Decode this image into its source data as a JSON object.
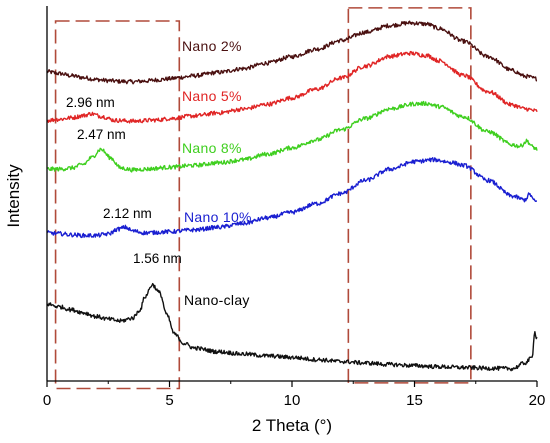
{
  "chart_data": {
    "type": "line",
    "title": "",
    "xlabel": "2 Theta (°)",
    "ylabel": "Intensity",
    "xlim": [
      0,
      20
    ],
    "ylim": [
      0,
      100
    ],
    "xticks": [
      0,
      5,
      10,
      15,
      20
    ],
    "y_tick_labels": false,
    "grid": false,
    "series": [
      {
        "name": "Nano 2%",
        "color": "#4a1010",
        "values": [
          [
            0,
            82.5
          ],
          [
            0.5,
            82.0
          ],
          [
            1,
            81.4
          ],
          [
            1.5,
            80.9
          ],
          [
            2,
            80.4
          ],
          [
            2.5,
            80.1
          ],
          [
            3,
            79.9
          ],
          [
            3.5,
            79.8
          ],
          [
            4,
            80.0
          ],
          [
            4.5,
            80.3
          ],
          [
            5,
            80.6
          ],
          [
            5.5,
            81.0
          ],
          [
            6,
            81.4
          ],
          [
            7,
            82.3
          ],
          [
            8,
            83.3
          ],
          [
            9,
            84.8
          ],
          [
            10,
            86.5
          ],
          [
            11,
            88.5
          ],
          [
            12,
            90.8
          ],
          [
            13,
            93.0
          ],
          [
            14,
            94.8
          ],
          [
            14.8,
            95.5
          ],
          [
            15.5,
            95.2
          ],
          [
            16,
            94.0
          ],
          [
            17,
            90.6
          ],
          [
            18,
            86.5
          ],
          [
            19,
            82.8
          ],
          [
            19.5,
            81.3
          ],
          [
            20,
            80.6
          ]
        ]
      },
      {
        "name": "Nano 5%",
        "color": "#e02525",
        "values": [
          [
            0,
            69.5
          ],
          [
            0.5,
            69.8
          ],
          [
            1,
            70.2
          ],
          [
            1.5,
            70.8
          ],
          [
            1.8,
            71.3
          ],
          [
            2.2,
            70.6
          ],
          [
            2.8,
            69.5
          ],
          [
            3.5,
            69.3
          ],
          [
            4.5,
            69.6
          ],
          [
            5,
            70.0
          ],
          [
            6,
            70.7
          ],
          [
            7,
            71.5
          ],
          [
            8,
            72.5
          ],
          [
            9,
            73.8
          ],
          [
            10,
            75.5
          ],
          [
            11,
            77.8
          ],
          [
            12,
            80.8
          ],
          [
            13,
            84.0
          ],
          [
            14,
            86.6
          ],
          [
            14.8,
            87.4
          ],
          [
            15.5,
            86.8
          ],
          [
            16,
            85.4
          ],
          [
            17,
            81.5
          ],
          [
            18,
            77.2
          ],
          [
            19,
            73.6
          ],
          [
            19.5,
            72.6
          ],
          [
            20,
            72.0
          ]
        ]
      },
      {
        "name": "Nano 8%",
        "color": "#3fcf1f",
        "values": [
          [
            0,
            56.5
          ],
          [
            0.5,
            56.5
          ],
          [
            1,
            56.8
          ],
          [
            1.5,
            57.8
          ],
          [
            1.8,
            59.5
          ],
          [
            2.2,
            61.8
          ],
          [
            2.6,
            59.5
          ],
          [
            3,
            56.8
          ],
          [
            3.5,
            56.3
          ],
          [
            4,
            56.5
          ],
          [
            5,
            57.0
          ],
          [
            6,
            57.5
          ],
          [
            7,
            58.2
          ],
          [
            8,
            59.0
          ],
          [
            9,
            60.5
          ],
          [
            10,
            62.2
          ],
          [
            11,
            64.3
          ],
          [
            12,
            67.0
          ],
          [
            13,
            70.0
          ],
          [
            14,
            72.6
          ],
          [
            15,
            73.9
          ],
          [
            15.5,
            74.0
          ],
          [
            16,
            73.2
          ],
          [
            17,
            70.5
          ],
          [
            18,
            66.5
          ],
          [
            19,
            63.0
          ],
          [
            19.3,
            62.6
          ],
          [
            19.6,
            64.0
          ],
          [
            19.8,
            62.5
          ],
          [
            20,
            61.8
          ]
        ]
      },
      {
        "name": "Nano 10%",
        "color": "#1a1fd1",
        "values": [
          [
            0,
            39.5
          ],
          [
            0.5,
            39.3
          ],
          [
            1,
            39.0
          ],
          [
            1.5,
            38.8
          ],
          [
            2,
            38.8
          ],
          [
            2.5,
            39.2
          ],
          [
            2.9,
            40.5
          ],
          [
            3.2,
            41.0
          ],
          [
            3.5,
            40.0
          ],
          [
            4,
            39.5
          ],
          [
            5,
            39.8
          ],
          [
            6,
            40.3
          ],
          [
            7,
            41.0
          ],
          [
            8,
            42.0
          ],
          [
            9,
            43.5
          ],
          [
            10,
            45.0
          ],
          [
            11,
            47.3
          ],
          [
            12,
            50.0
          ],
          [
            13,
            53.5
          ],
          [
            14,
            56.5
          ],
          [
            15,
            58.5
          ],
          [
            15.8,
            59.0
          ],
          [
            16.5,
            58.3
          ],
          [
            17,
            57.5
          ],
          [
            18,
            53.5
          ],
          [
            19,
            49.3
          ],
          [
            19.5,
            48.3
          ],
          [
            19.7,
            49.8
          ],
          [
            19.9,
            48.0
          ],
          [
            20,
            47.8
          ]
        ]
      },
      {
        "name": "Nano-clay",
        "color": "#111111",
        "values": [
          [
            0,
            20.5
          ],
          [
            0.5,
            19.8
          ],
          [
            1,
            19.0
          ],
          [
            1.5,
            18.2
          ],
          [
            2,
            17.2
          ],
          [
            2.5,
            16.5
          ],
          [
            3,
            16.0
          ],
          [
            3.5,
            16.8
          ],
          [
            3.8,
            19.0
          ],
          [
            4.0,
            22.5
          ],
          [
            4.3,
            25.7
          ],
          [
            4.6,
            23.5
          ],
          [
            4.9,
            17.5
          ],
          [
            5.2,
            12.5
          ],
          [
            5.6,
            10.0
          ],
          [
            6,
            8.8
          ],
          [
            7,
            7.8
          ],
          [
            8,
            7.2
          ],
          [
            9,
            6.7
          ],
          [
            10,
            6.3
          ],
          [
            11,
            5.7
          ],
          [
            12,
            5.2
          ],
          [
            13,
            4.8
          ],
          [
            14,
            4.4
          ],
          [
            15,
            4.1
          ],
          [
            16,
            3.8
          ],
          [
            17,
            3.6
          ],
          [
            18,
            3.4
          ],
          [
            19,
            3.3
          ],
          [
            19.5,
            4.8
          ],
          [
            19.8,
            6.2
          ],
          [
            19.9,
            13.0
          ],
          [
            20,
            11.5
          ]
        ]
      }
    ],
    "series_labels": [
      "Nano 2%",
      "Nano 5%",
      "Nano 8%",
      "Nano 10%",
      "Nano-clay"
    ],
    "annotations": [
      {
        "text": "2.96 nm",
        "x": 1.8,
        "y": 71.3
      },
      {
        "text": "2.47 nm",
        "x": 2.2,
        "y": 61.8
      },
      {
        "text": "2.12 nm",
        "x": 3.2,
        "y": 41.0
      },
      {
        "text": "1.56 nm",
        "x": 4.3,
        "y": 25.7
      }
    ],
    "highlight_boxes": [
      {
        "x": [
          0.35,
          5.4
        ],
        "y": [
          -2,
          96
        ],
        "color": "#b04a3a",
        "style": "dashed"
      },
      {
        "x": [
          12.3,
          17.3
        ],
        "y": [
          -0.5,
          99.5
        ],
        "color": "#b04a3a",
        "style": "dashed"
      }
    ]
  }
}
